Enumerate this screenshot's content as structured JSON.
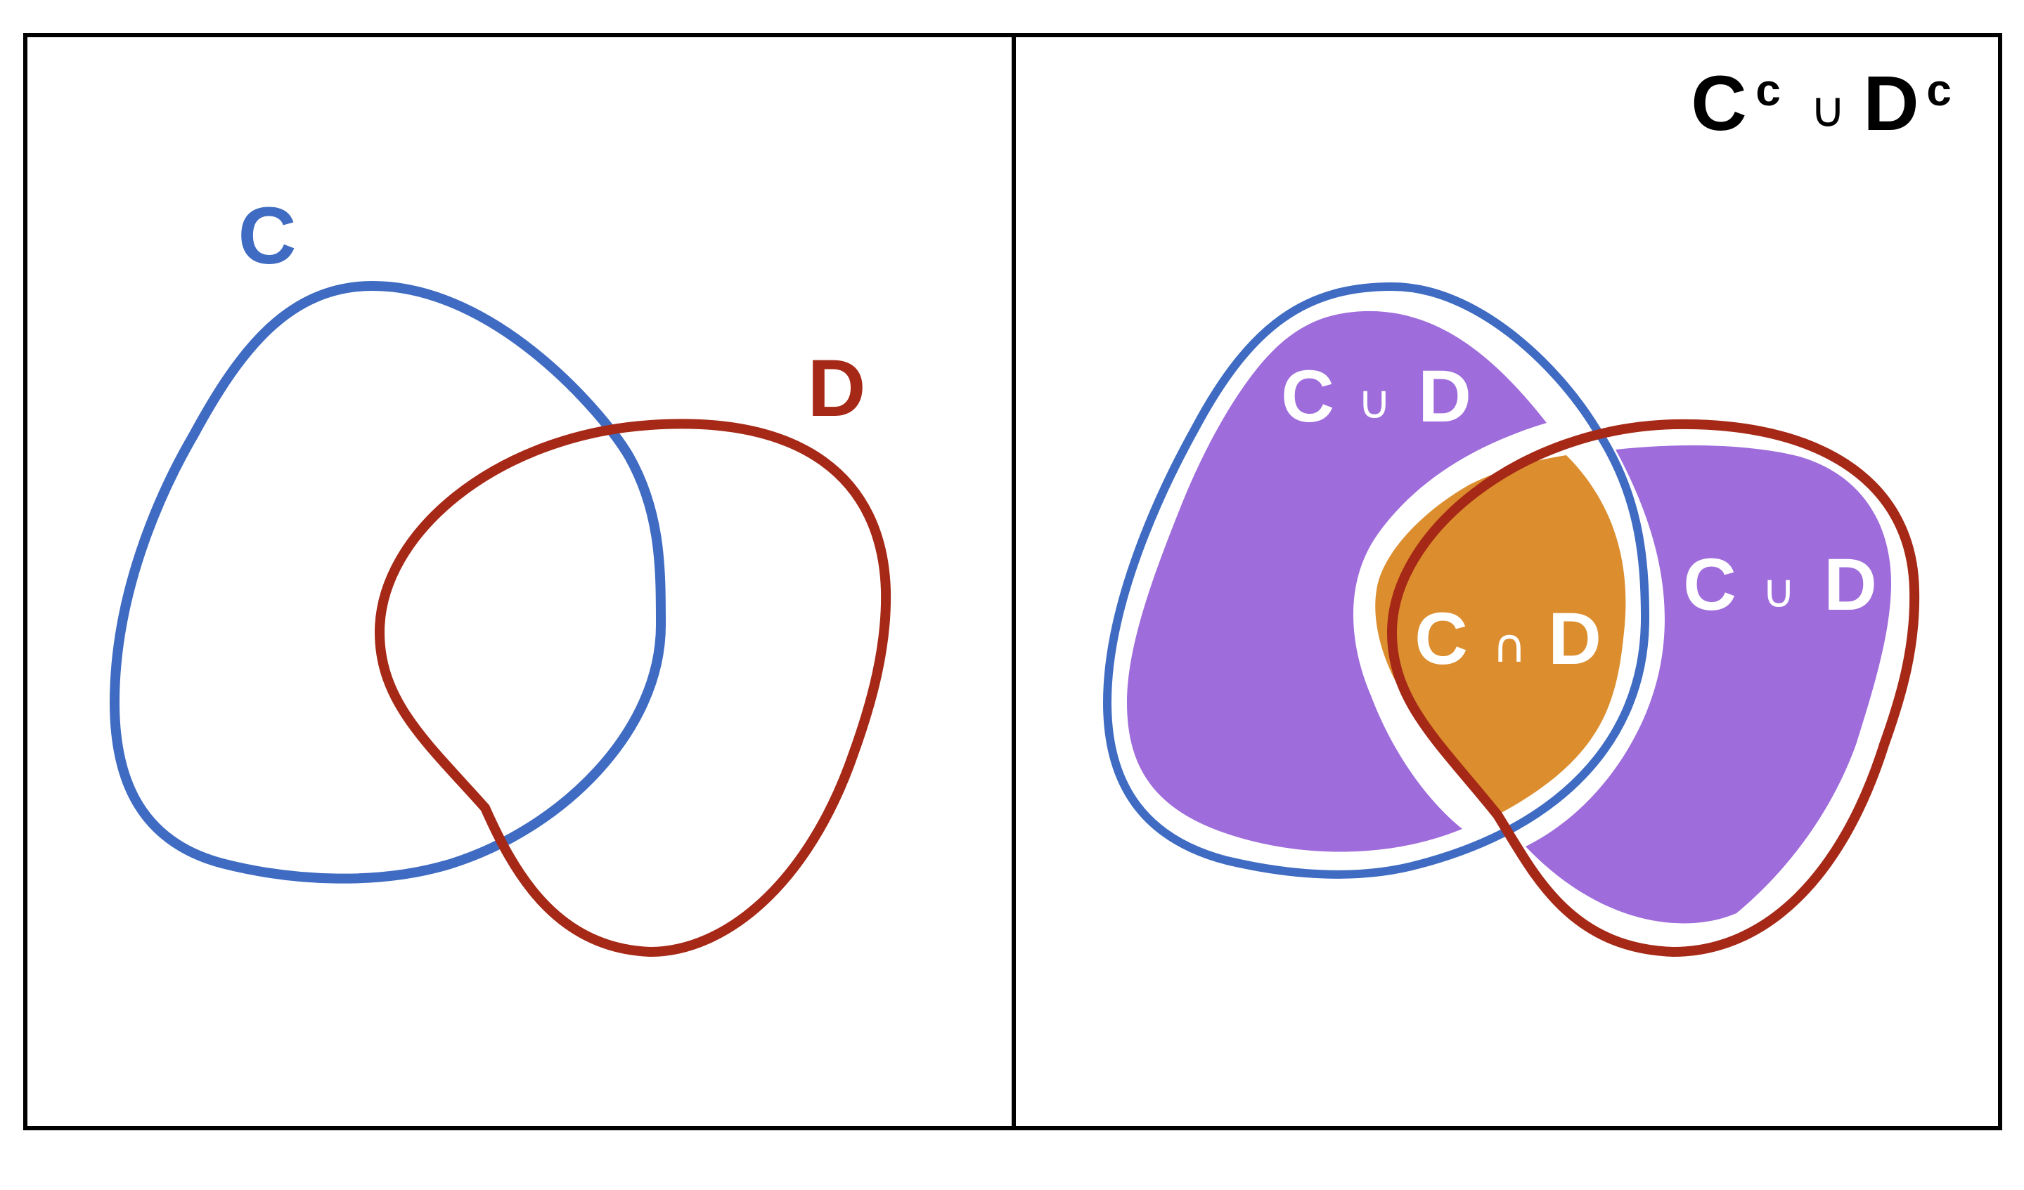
{
  "colors": {
    "set_c": "#3f6bc2",
    "set_d": "#a62917",
    "union_fill": "#9e6cdb",
    "intersection_fill": "#dc8e2e",
    "frame": "#000000",
    "label_light": "#ffffff"
  },
  "left_panel": {
    "label_c": "C",
    "label_d": "D"
  },
  "right_panel": {
    "title_c": "C",
    "title_c_sup": "c",
    "title_op": "∪",
    "title_d": "D",
    "title_d_sup": "c",
    "region_left": {
      "c": "C",
      "op": "∪",
      "d": "D"
    },
    "region_center": {
      "c": "C",
      "op": "∩",
      "d": "D"
    },
    "region_right": {
      "c": "C",
      "op": "∪",
      "d": "D"
    }
  }
}
